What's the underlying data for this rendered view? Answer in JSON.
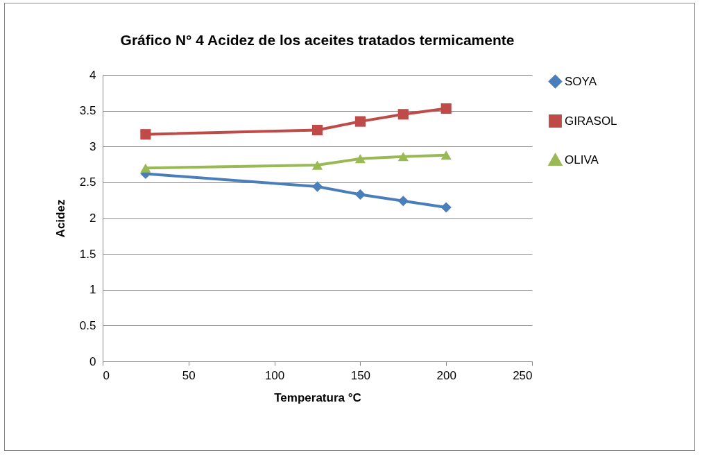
{
  "chart_data": {
    "type": "line",
    "title": "Gráfico N° 4 Acidez de los aceites tratados termicamente",
    "xlabel": "Temperatura °C",
    "ylabel": "Acidez",
    "x": [
      25,
      125,
      150,
      175,
      200
    ],
    "series": [
      {
        "name": "SOYA",
        "color": "#4a7ebb",
        "marker": "diamond",
        "values": [
          2.62,
          2.44,
          2.33,
          2.24,
          2.15
        ]
      },
      {
        "name": "GIRASOL",
        "color": "#be4b48",
        "marker": "square",
        "values": [
          3.17,
          3.23,
          3.35,
          3.45,
          3.53
        ]
      },
      {
        "name": "OLIVA",
        "color": "#98b954",
        "marker": "triangle",
        "values": [
          2.7,
          2.74,
          2.83,
          2.86,
          2.88
        ]
      }
    ],
    "xlim": [
      0,
      250
    ],
    "xticks": [
      0,
      50,
      100,
      150,
      200,
      250
    ],
    "ylim": [
      0,
      4
    ],
    "yticks": [
      0,
      0.5,
      1,
      1.5,
      2,
      2.5,
      3,
      3.5,
      4
    ],
    "grid": "y",
    "legend": "right"
  }
}
